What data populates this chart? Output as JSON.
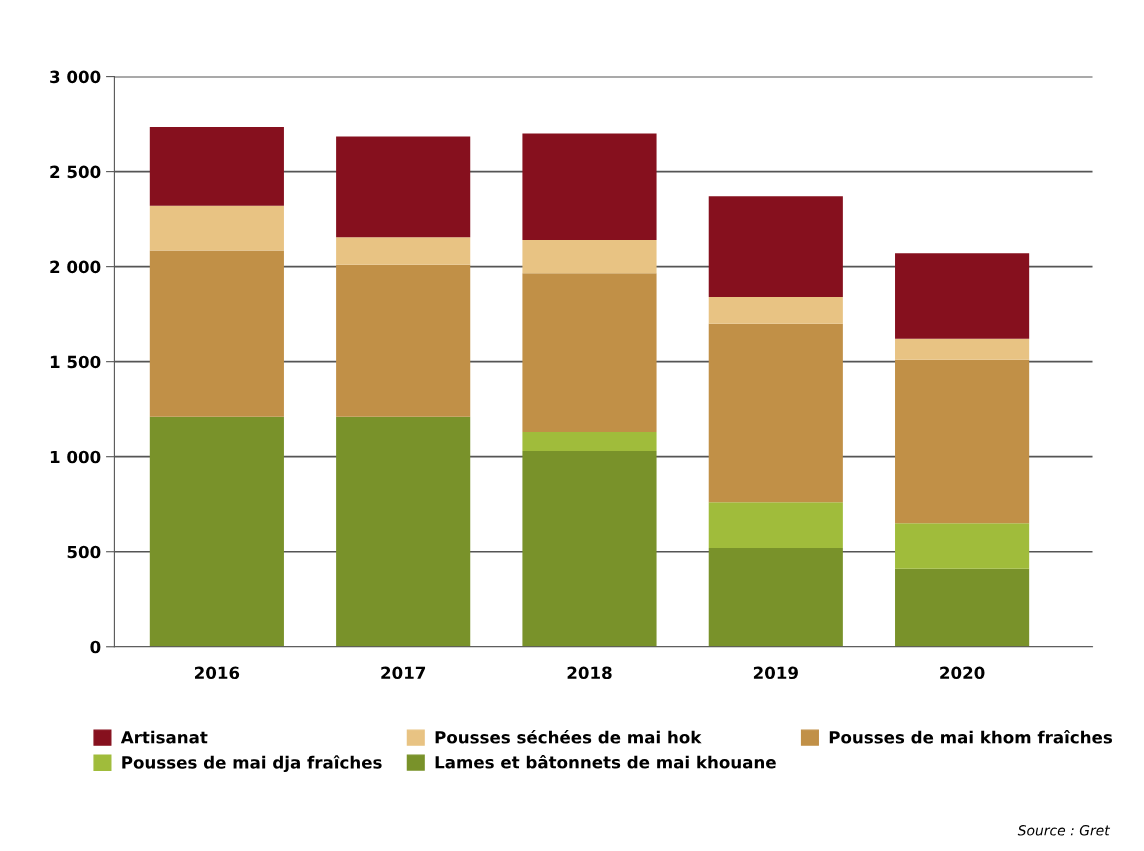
{
  "chart_data": {
    "type": "bar",
    "stacked": true,
    "categories": [
      "2016",
      "2017",
      "2018",
      "2019",
      "2020"
    ],
    "series": [
      {
        "name": "Lames et bâtonnets de mai khouane",
        "color": "#79922a",
        "values": [
          1210,
          1210,
          1030,
          520,
          410
        ]
      },
      {
        "name": "Pousses de mai dja fraîches",
        "color": "#a0bc3b",
        "values": [
          0,
          0,
          100,
          240,
          240
        ]
      },
      {
        "name": "Pousses de mai khom fraîches",
        "color": "#c19047",
        "values": [
          875,
          800,
          835,
          940,
          860
        ]
      },
      {
        "name": "Pousses séchées de mai hok",
        "color": "#e8c383",
        "values": [
          235,
          145,
          175,
          140,
          110
        ]
      },
      {
        "name": "Artisanat",
        "color": "#86101e",
        "values": [
          415,
          530,
          560,
          530,
          450
        ]
      }
    ],
    "ylim": [
      0,
      3000
    ],
    "yticks": [
      {
        "value": 0,
        "label": "0"
      },
      {
        "value": 500,
        "label": "500"
      },
      {
        "value": 1000,
        "label": "1 000"
      },
      {
        "value": 1500,
        "label": "1 500"
      },
      {
        "value": 2000,
        "label": "2 000"
      },
      {
        "value": 2500,
        "label": "2 500"
      },
      {
        "value": 3000,
        "label": "3 000"
      }
    ],
    "grid": "y",
    "legend": "bottom",
    "annotations": [
      "Source : Gret"
    ]
  }
}
